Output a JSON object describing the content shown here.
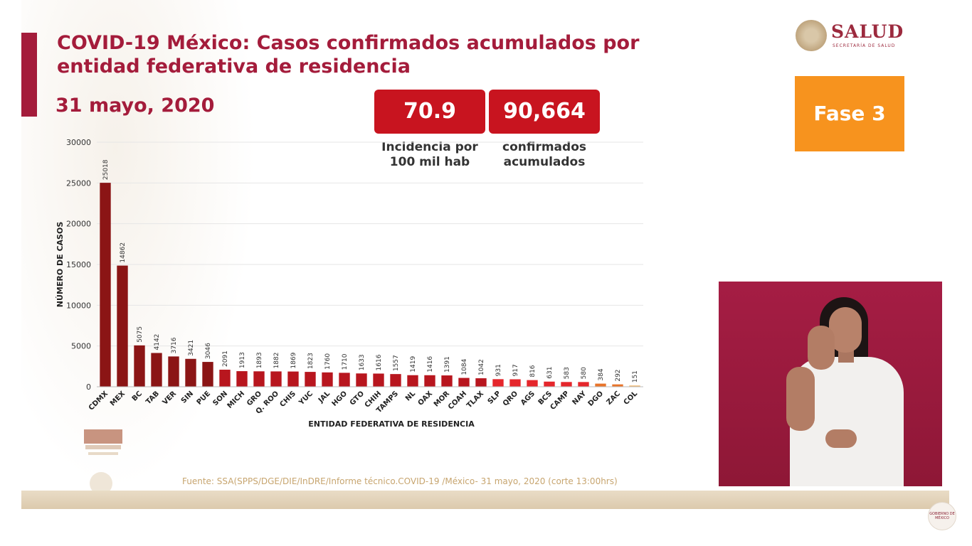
{
  "header": {
    "title_line1": "COVID-19 México: Casos confirmados acumulados por",
    "title_line2": "entidad federativa de residencia",
    "date": "31 mayo, 2020"
  },
  "stats": {
    "incidence_value": "70.9",
    "incidence_label_line1": "Incidencia por",
    "incidence_label_line2": "100 mil hab",
    "confirmed_value": "90,664",
    "confirmed_label_line1": "confirmados",
    "confirmed_label_line2": "acumulados"
  },
  "logo": {
    "word": "SALUD",
    "sub": "SECRETARÍA DE SALUD"
  },
  "phase": {
    "label": "Fase 3",
    "color": "#f7931e"
  },
  "source": "Fuente: SSA(SPPS/DGE/DIE/InDRE/Informe técnico.COVID-19 /México- 31 mayo, 2020 (corte 13:00hrs)",
  "corner_badge": "GOBIERNO DE MÉXICO",
  "colors": {
    "accent": "#a41c3b",
    "bar_dark": "#8b1515",
    "bar_mid": "#c8141f",
    "bar_red": "#e5262b",
    "bar_orange": "#e8742a",
    "bar_light": "#f2b66a"
  },
  "chart_data": {
    "type": "bar",
    "xlabel": "ENTIDAD FEDERATIVA DE RESIDENCIA",
    "ylabel": "NÚMERO DE CASOS",
    "ylim": [
      0,
      30000
    ],
    "yticks": [
      0,
      5000,
      10000,
      15000,
      20000,
      25000,
      30000
    ],
    "grid": true,
    "categories": [
      "CDMX",
      "MEX",
      "BC",
      "TAB",
      "VER",
      "SIN",
      "PUE",
      "SON",
      "MICH",
      "GRO",
      "Q. ROO",
      "CHIS",
      "YUC",
      "JAL",
      "HGO",
      "GTO",
      "CHIH",
      "TAMPS",
      "NL",
      "OAX",
      "MOR",
      "COAH",
      "TLAX",
      "SLP",
      "QRO",
      "AGS",
      "BCS",
      "CAMP",
      "NAY",
      "DGO",
      "ZAC",
      "COL"
    ],
    "values": [
      25018,
      14862,
      5075,
      4142,
      3716,
      3421,
      3046,
      2091,
      1913,
      1893,
      1882,
      1869,
      1823,
      1760,
      1710,
      1633,
      1616,
      1557,
      1419,
      1416,
      1391,
      1084,
      1042,
      931,
      917,
      816,
      631,
      583,
      580,
      384,
      292,
      151
    ],
    "bar_colors": [
      "#8b1515",
      "#8b1515",
      "#8b1515",
      "#8b1515",
      "#8b1515",
      "#8b1515",
      "#8b1515",
      "#b8161e",
      "#b8161e",
      "#b8161e",
      "#b8161e",
      "#b8161e",
      "#b8161e",
      "#b8161e",
      "#b8161e",
      "#b8161e",
      "#b8161e",
      "#b8161e",
      "#b8161e",
      "#b8161e",
      "#b8161e",
      "#b8161e",
      "#b8161e",
      "#e5262b",
      "#e5262b",
      "#e5262b",
      "#e5262b",
      "#e5262b",
      "#e5262b",
      "#e8742a",
      "#e8742a",
      "#f2b66a"
    ]
  }
}
